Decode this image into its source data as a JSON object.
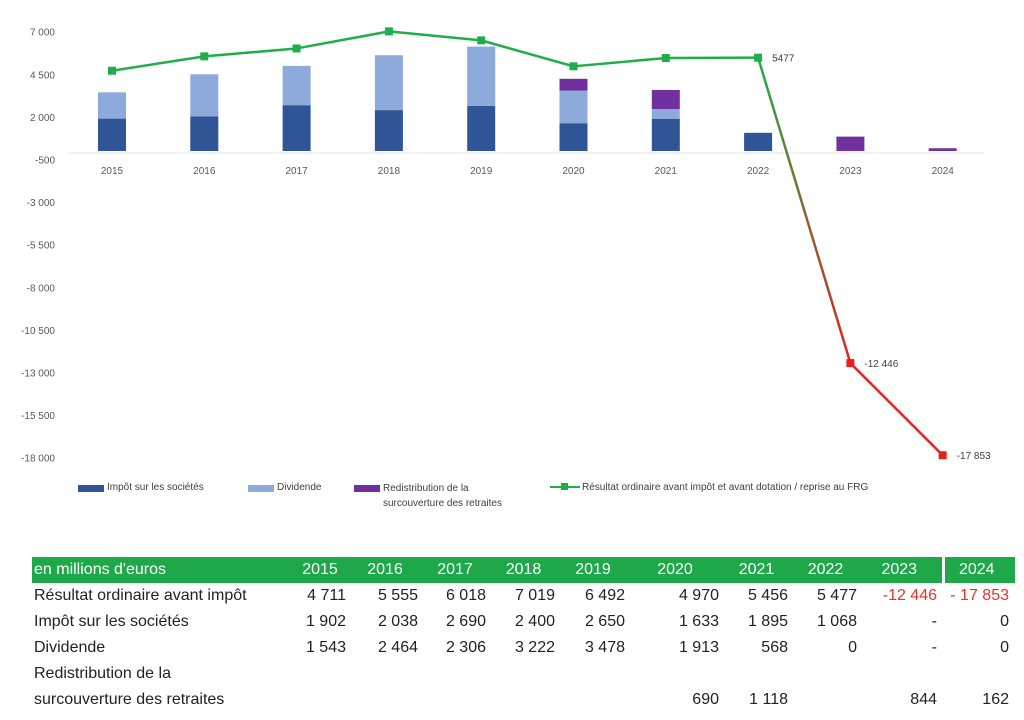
{
  "chart_data": {
    "type": "bar+line",
    "categories": [
      "2015",
      "2016",
      "2017",
      "2018",
      "2019",
      "2020",
      "2021",
      "2022",
      "2023",
      "2024"
    ],
    "ylim": [
      -18000,
      7000
    ],
    "yticks": [
      7000,
      4500,
      2000,
      -500,
      -3000,
      -5500,
      -8000,
      -10500,
      -13000,
      -15500,
      -18000
    ],
    "ytick_labels": [
      "7 000",
      "4 500",
      "2 000",
      "-500",
      "-3 000",
      "-5 500",
      "-8 000",
      "-10 500",
      "-13 000",
      "-15 500",
      "-18 000"
    ],
    "series": [
      {
        "name": "Impôt sur les sociétés",
        "type": "bar",
        "color": "#2f5597",
        "values": [
          1902,
          2038,
          2690,
          2400,
          2650,
          1633,
          1895,
          1068,
          0,
          0
        ]
      },
      {
        "name": "Dividende",
        "type": "bar",
        "color": "#8eaadb",
        "values": [
          1543,
          2464,
          2306,
          3222,
          3478,
          1913,
          568,
          0,
          0,
          0
        ]
      },
      {
        "name": "Redistribution de la surcouverture des retraites",
        "type": "bar",
        "color": "#7030a0",
        "values": [
          0,
          0,
          0,
          0,
          0,
          690,
          1118,
          0,
          844,
          162
        ]
      },
      {
        "name": "Résultat ordinaire avant impôt et avant dotation / reprise au FRG",
        "type": "line",
        "color": "#1fae4b",
        "neg_color": "#e8211c",
        "values": [
          4711,
          5555,
          6018,
          7019,
          6492,
          4970,
          5456,
          5477,
          -12446,
          -17853
        ]
      }
    ],
    "annotations": [
      "5477",
      "-12 446",
      "-17 853"
    ],
    "legend_position": "bottom"
  },
  "table": {
    "header": "en millions d'euros",
    "years": [
      "2015",
      "2016",
      "2017",
      "2018",
      "2019",
      "2020",
      "2021",
      "2022",
      "2023",
      "2024"
    ],
    "rows": [
      {
        "label": "Résultat ordinaire avant impôt",
        "values": [
          "4 711",
          "5 555",
          "6 018",
          "7 019",
          "6 492",
          "4 970",
          "5 456",
          "5 477",
          "-12 446",
          "- 17 853"
        ]
      },
      {
        "label": "Impôt sur les sociétés",
        "values": [
          "1 902",
          "2 038",
          "2 690",
          "2 400",
          "2 650",
          "1 633",
          "1 895",
          "1 068",
          "-",
          "0"
        ]
      },
      {
        "label": "Dividende",
        "values": [
          "1 543",
          "2 464",
          "2 306",
          "3 222",
          "3 478",
          "1 913",
          "568",
          "0",
          "-",
          "0"
        ]
      },
      {
        "label": "Redistribution de la",
        "values": [
          "",
          "",
          "",
          "",
          "",
          "",
          "",
          "",
          "",
          ""
        ]
      },
      {
        "label": "surcouverture des retraites",
        "values": [
          "",
          "",
          "",
          "",
          "",
          "690",
          "1 118",
          "",
          "844",
          "162"
        ]
      }
    ]
  }
}
